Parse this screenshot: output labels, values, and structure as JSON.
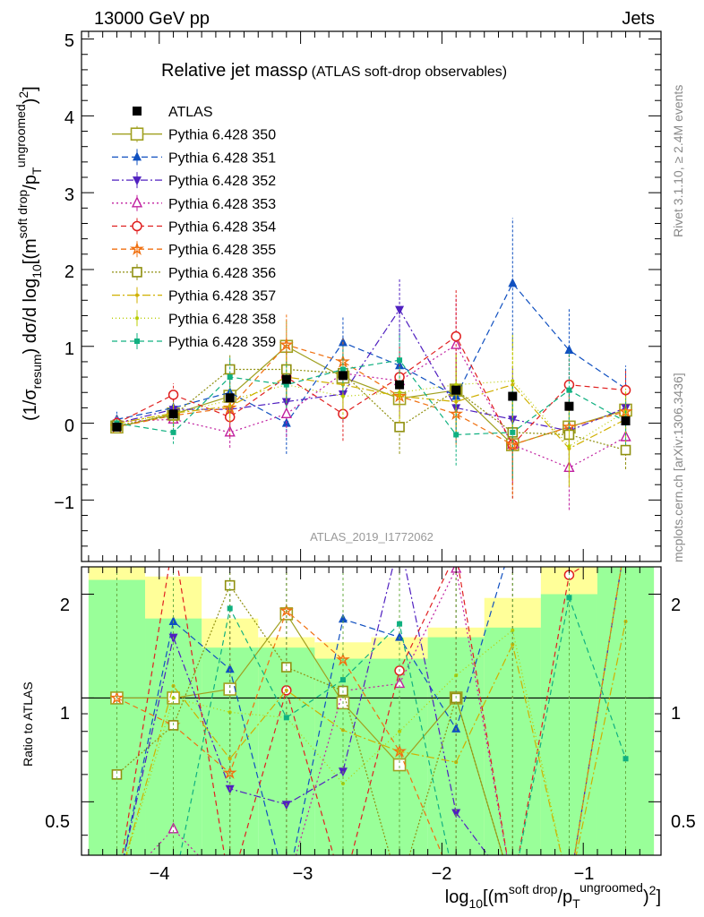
{
  "header": {
    "energy": "13000 GeV pp",
    "process": "Jets"
  },
  "title": {
    "main": "Relative jet massρ",
    "sub": "(ATLAS soft-drop observables)"
  },
  "sidebar": {
    "rivet": "Rivet 3.1.10, ≥ 2.4M events",
    "mcplots": "mcplots.cern.ch [arXiv:1306.3436]"
  },
  "analysis_id": "ATLAS_2019_I1772062",
  "ratio_label": "Ratio to ATLAS",
  "axes": {
    "x_ticks": [
      "−4",
      "−3",
      "−2",
      "−1"
    ],
    "y_ticks": [
      "−1",
      "0",
      "1",
      "2",
      "3",
      "4",
      "5"
    ],
    "ratio_ticks": [
      "0.5",
      "1",
      "2"
    ]
  },
  "chart_data": {
    "type": "scatter",
    "xlabel": "log10[(m^{soft drop}/p_T^{ungroomed})^2]",
    "ylabel": "(1/σresum) dσ/d log10[(m^{soft drop}/p_T^{ungroomed})^2]",
    "xlim": [
      -4.55,
      -0.45
    ],
    "ylim": [
      -1.8,
      5.1
    ],
    "ratio_ylim": [
      0.35,
      2.4
    ],
    "ratio_scale": "log",
    "x": [
      -4.3,
      -3.9,
      -3.5,
      -3.1,
      -2.7,
      -2.3,
      -1.9,
      -1.5,
      -1.1,
      -0.7
    ],
    "data": {
      "name": "ATLAS",
      "values": [
        -0.05,
        0.12,
        0.33,
        0.57,
        0.62,
        0.5,
        0.43,
        0.35,
        0.22,
        0.03
      ],
      "band_green": [
        [
          0.33,
          2.2
        ],
        [
          0.33,
          1.7
        ],
        [
          0.33,
          1.4
        ],
        [
          0.33,
          1.4
        ],
        [
          0.33,
          1.3
        ],
        [
          0.33,
          1.3
        ],
        [
          0.33,
          1.5
        ],
        [
          0.33,
          1.6
        ],
        [
          0.33,
          2.0
        ],
        [
          0.33,
          2.4
        ]
      ],
      "band_yellow": [
        [
          0.33,
          2.4
        ],
        [
          0.33,
          2.25
        ],
        [
          0.75,
          1.7
        ],
        [
          0.8,
          1.5
        ],
        [
          0.48,
          1.45
        ],
        [
          0.48,
          1.5
        ],
        [
          0.7,
          1.6
        ],
        [
          0.33,
          1.95
        ],
        [
          0.33,
          2.4
        ],
        [
          0.33,
          2.4
        ]
      ]
    },
    "series": [
      {
        "name": "Pythia 6.428 350",
        "color": "#a0a020",
        "marker": "square-open",
        "dash": "solid",
        "values": [
          -0.05,
          0.12,
          0.35,
          1.0,
          0.6,
          0.32,
          0.43,
          -0.28,
          -0.05,
          0.17
        ],
        "err": [
          0.05,
          0.12,
          0.15,
          0.35,
          0.25,
          0.25,
          0.35,
          0.7,
          0.5,
          0.3
        ]
      },
      {
        "name": "Pythia 6.428 351",
        "color": "#1050c0",
        "marker": "triangle-up",
        "dash": "7,4",
        "values": [
          0.05,
          0.2,
          0.4,
          0.0,
          1.05,
          0.75,
          0.35,
          1.82,
          0.95,
          0.45
        ],
        "err": [
          0.1,
          0.2,
          0.3,
          0.4,
          0.35,
          0.5,
          0.5,
          0.85,
          0.55,
          0.3
        ]
      },
      {
        "name": "Pythia 6.428 352",
        "color": "#5020c0",
        "marker": "triangle-down",
        "dash": "8,3,2,3",
        "values": [
          0.0,
          0.18,
          0.18,
          0.28,
          0.38,
          1.48,
          0.2,
          0.05,
          -0.1,
          0.2
        ],
        "err": [
          0.1,
          0.2,
          0.25,
          0.3,
          0.35,
          0.4,
          0.45,
          0.7,
          0.6,
          0.3
        ]
      },
      {
        "name": "Pythia 6.428 353",
        "color": "#c020a0",
        "marker": "triangle-up-open",
        "dash": "2,3",
        "values": [
          0.02,
          0.05,
          -0.12,
          0.12,
          0.65,
          0.55,
          1.02,
          -0.28,
          -0.58,
          -0.18
        ],
        "err": [
          0.08,
          0.15,
          0.2,
          0.3,
          0.3,
          0.45,
          0.6,
          0.5,
          0.55,
          0.3
        ]
      },
      {
        "name": "Pythia 6.428 354",
        "color": "#e02020",
        "marker": "circle-open",
        "dash": "6,4",
        "values": [
          0.0,
          0.37,
          0.08,
          0.6,
          0.12,
          0.6,
          1.13,
          -0.28,
          0.5,
          0.43
        ],
        "err": [
          0.1,
          0.15,
          0.25,
          0.35,
          0.35,
          0.4,
          0.6,
          0.7,
          0.4,
          0.25
        ]
      },
      {
        "name": "Pythia 6.428 355",
        "color": "#f07010",
        "marker": "star",
        "dash": "6,4",
        "values": [
          -0.05,
          0.1,
          0.2,
          1.02,
          0.8,
          0.35,
          0.12,
          -0.28,
          -0.05,
          0.15
        ],
        "err": [
          0.05,
          0.15,
          0.2,
          0.4,
          0.3,
          0.3,
          0.4,
          0.65,
          0.5,
          0.3
        ]
      },
      {
        "name": "Pythia 6.428 356",
        "color": "#909010",
        "marker": "square-open",
        "dash": "2,2",
        "values": [
          -0.03,
          0.1,
          0.7,
          0.7,
          0.65,
          -0.05,
          0.43,
          -0.12,
          -0.15,
          -0.35
        ],
        "err": [
          0.05,
          0.15,
          0.2,
          0.35,
          0.3,
          0.35,
          0.45,
          0.6,
          0.5,
          0.25
        ]
      },
      {
        "name": "Pythia 6.428 357",
        "color": "#d0b000",
        "marker": "small-dot",
        "dash": "9,3,2,3",
        "values": [
          0.0,
          0.13,
          0.22,
          0.6,
          0.5,
          0.35,
          0.28,
          0.5,
          -0.33,
          0.05
        ],
        "err": [
          0.05,
          0.15,
          0.2,
          0.3,
          0.3,
          0.35,
          0.4,
          0.6,
          0.5,
          0.3
        ]
      },
      {
        "name": "Pythia 6.428 358",
        "color": "#b8cc00",
        "marker": "small-dot",
        "dash": "1,3",
        "values": [
          0.0,
          0.12,
          0.3,
          0.5,
          0.35,
          0.4,
          0.5,
          0.55,
          -0.3,
          0.15
        ],
        "err": [
          0.05,
          0.15,
          0.2,
          0.3,
          0.3,
          0.35,
          0.4,
          0.6,
          0.5,
          0.3
        ]
      },
      {
        "name": "Pythia 6.428 359",
        "color": "#10b080",
        "marker": "square-small",
        "dash": "6,4",
        "values": [
          0.0,
          -0.12,
          0.6,
          0.5,
          0.7,
          0.82,
          -0.15,
          -0.12,
          0.43,
          0.02
        ],
        "err": [
          0.1,
          0.15,
          0.25,
          0.3,
          0.3,
          0.35,
          0.4,
          0.6,
          0.5,
          0.3
        ]
      }
    ]
  }
}
